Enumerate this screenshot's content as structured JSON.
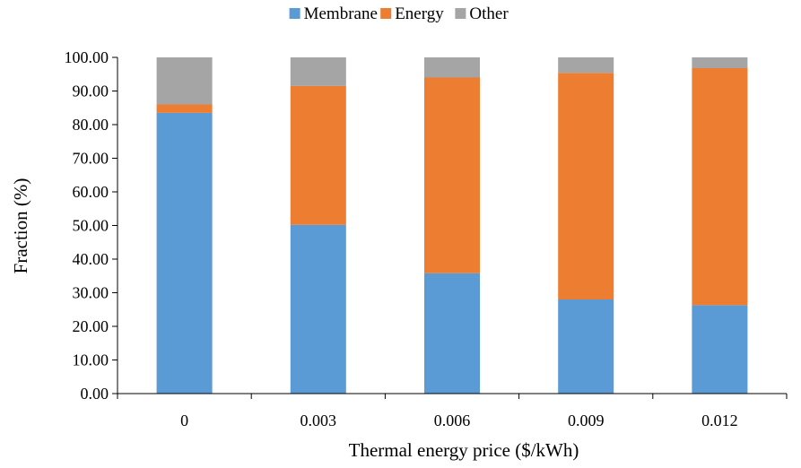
{
  "chart_data": {
    "type": "bar",
    "stacked": true,
    "title": "",
    "xlabel": "Thermal energy price ($/kWh)",
    "ylabel": "Fraction (%)",
    "categories": [
      "0",
      "0.003",
      "0.006",
      "0.009",
      "0.012"
    ],
    "series": [
      {
        "name": "Membrane",
        "color": "#5B9BD5",
        "values": [
          83.5,
          50.2,
          35.8,
          28.0,
          26.3
        ]
      },
      {
        "name": "Energy",
        "color": "#ED7D31",
        "values": [
          2.5,
          41.3,
          58.2,
          67.4,
          70.5
        ]
      },
      {
        "name": "Other",
        "color": "#A5A5A5",
        "values": [
          14.0,
          8.5,
          6.0,
          4.6,
          3.2
        ]
      }
    ],
    "ylim": [
      0,
      100
    ],
    "yticks": [
      "0.00",
      "10.00",
      "20.00",
      "30.00",
      "40.00",
      "50.00",
      "60.00",
      "70.00",
      "80.00",
      "90.00",
      "100.00"
    ],
    "legend_position": "top-center",
    "grid": false
  }
}
